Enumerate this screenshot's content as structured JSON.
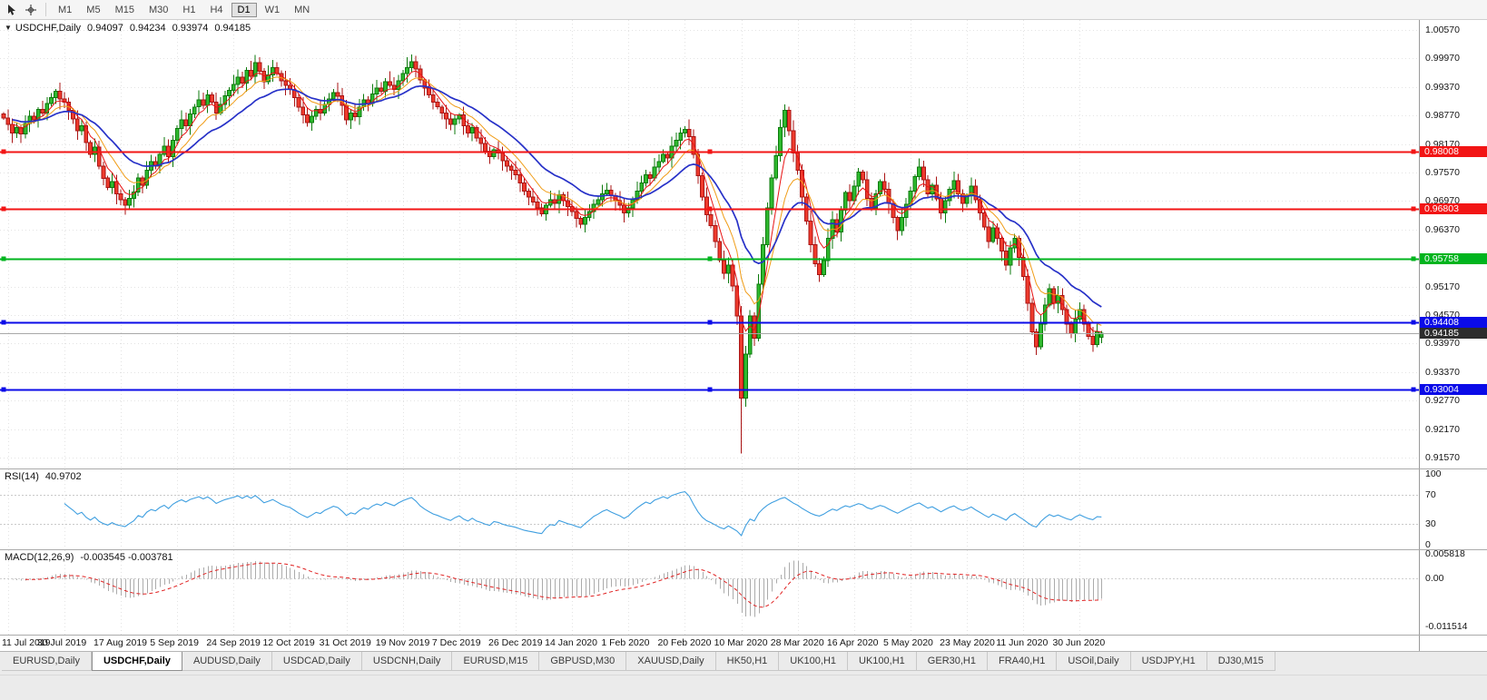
{
  "toolbar": {
    "timeframes": [
      {
        "label": "M1",
        "active": false
      },
      {
        "label": "M5",
        "active": false
      },
      {
        "label": "M15",
        "active": false
      },
      {
        "label": "M30",
        "active": false
      },
      {
        "label": "H1",
        "active": false
      },
      {
        "label": "H4",
        "active": false
      },
      {
        "label": "D1",
        "active": true
      },
      {
        "label": "W1",
        "active": false
      },
      {
        "label": "MN",
        "active": false
      }
    ]
  },
  "chart": {
    "title": "USDCHF,Daily",
    "ohlc": {
      "open": "0.94097",
      "high": "0.94234",
      "low": "0.93974",
      "close": "0.94185"
    }
  },
  "chart_data": {
    "type": "candlestick",
    "symbol": "USDCHF",
    "period": "Daily",
    "price_range": {
      "top": 1.0078,
      "bottom": 0.91339
    },
    "open_first": 0.988,
    "closes": [
      0.9872,
      0.9858,
      0.984,
      0.9852,
      0.9838,
      0.986,
      0.9875,
      0.9868,
      0.989,
      0.9882,
      0.9902,
      0.9915,
      0.9928,
      0.9912,
      0.9905,
      0.9888,
      0.987,
      0.9845,
      0.9855,
      0.982,
      0.9795,
      0.981,
      0.977,
      0.9745,
      0.9725,
      0.9738,
      0.9712,
      0.97,
      0.9688,
      0.9702,
      0.9716,
      0.9745,
      0.973,
      0.9762,
      0.978,
      0.977,
      0.9795,
      0.9812,
      0.979,
      0.9825,
      0.985,
      0.9868,
      0.9855,
      0.988,
      0.9895,
      0.991,
      0.9898,
      0.992,
      0.9905,
      0.9882,
      0.99,
      0.9918,
      0.993,
      0.9942,
      0.9958,
      0.9945,
      0.9972,
      0.996,
      0.9988,
      0.997,
      0.9948,
      0.9962,
      0.9978,
      0.9965,
      0.995,
      0.994,
      0.9932,
      0.9915,
      0.9895,
      0.9878,
      0.9862,
      0.9875,
      0.989,
      0.9882,
      0.99,
      0.9912,
      0.9925,
      0.9918,
      0.9898,
      0.9868,
      0.9882,
      0.9875,
      0.9895,
      0.991,
      0.9902,
      0.9922,
      0.9935,
      0.9928,
      0.9948,
      0.994,
      0.9932,
      0.995,
      0.9965,
      0.9978,
      0.999,
      0.9975,
      0.9952,
      0.9935,
      0.992,
      0.9905,
      0.9895,
      0.9882,
      0.987,
      0.9858,
      0.987,
      0.9878,
      0.9855,
      0.984,
      0.9852,
      0.983,
      0.9818,
      0.9802,
      0.979,
      0.9805,
      0.9798,
      0.9782,
      0.977,
      0.9762,
      0.9752,
      0.9735,
      0.9718,
      0.9705,
      0.9695,
      0.9682,
      0.967,
      0.9688,
      0.97,
      0.9692,
      0.971,
      0.9698,
      0.9685,
      0.9675,
      0.966,
      0.9648,
      0.9662,
      0.9675,
      0.969,
      0.97,
      0.9712,
      0.972,
      0.9708,
      0.9698,
      0.9688,
      0.9672,
      0.9682,
      0.97,
      0.9718,
      0.9735,
      0.9752,
      0.9745,
      0.9768,
      0.978,
      0.9795,
      0.9788,
      0.9812,
      0.9825,
      0.984,
      0.9848,
      0.9832,
      0.9795,
      0.975,
      0.9705,
      0.9668,
      0.9645,
      0.9612,
      0.9572,
      0.9545,
      0.9562,
      0.9518,
      0.9455,
      0.9282,
      0.9375,
      0.9455,
      0.9408,
      0.9522,
      0.9605,
      0.9682,
      0.9745,
      0.9792,
      0.9852,
      0.9888,
      0.9845,
      0.9798,
      0.9762,
      0.9705,
      0.9655,
      0.9605,
      0.9565,
      0.9542,
      0.9572,
      0.9618,
      0.9658,
      0.9632,
      0.9678,
      0.9715,
      0.9698,
      0.9728,
      0.9758,
      0.9742,
      0.9702,
      0.9682,
      0.9712,
      0.9738,
      0.9722,
      0.9692,
      0.9662,
      0.9635,
      0.9662,
      0.969,
      0.9718,
      0.9748,
      0.9768,
      0.9742,
      0.9712,
      0.973,
      0.9702,
      0.9672,
      0.9698,
      0.9722,
      0.974,
      0.9712,
      0.9692,
      0.9708,
      0.9728,
      0.97,
      0.9672,
      0.9642,
      0.9612,
      0.964,
      0.9618,
      0.9592,
      0.9562,
      0.9598,
      0.9618,
      0.9578,
      0.9538,
      0.9482,
      0.9422,
      0.939,
      0.9438,
      0.9478,
      0.9512,
      0.9482,
      0.9498,
      0.9468,
      0.9438,
      0.9418,
      0.9448,
      0.9468,
      0.9438,
      0.9412,
      0.9395,
      0.9422,
      0.94185
    ],
    "overrides": {
      "58": {
        "high": 1.0004
      },
      "94": {
        "high": 1.0005
      },
      "170": {
        "low": 0.9165
      },
      "238": {
        "low": 0.9373
      },
      "253": {
        "open": 0.94097,
        "high": 0.94234,
        "low": 0.93974
      }
    },
    "x_labels": [
      {
        "bar": 1,
        "text": "11 Jul 2019"
      },
      {
        "bar": 14,
        "text": "30 Jul 2019"
      },
      {
        "bar": 27,
        "text": "17 Aug 2019"
      },
      {
        "bar": 40,
        "text": "5 Sep 2019"
      },
      {
        "bar": 53,
        "text": "24 Sep 2019"
      },
      {
        "bar": 66,
        "text": "12 Oct 2019"
      },
      {
        "bar": 79,
        "text": "31 Oct 2019"
      },
      {
        "bar": 92,
        "text": "19 Nov 2019"
      },
      {
        "bar": 105,
        "text": "7 Dec 2019"
      },
      {
        "bar": 118,
        "text": "26 Dec 2019"
      },
      {
        "bar": 131,
        "text": "14 Jan 2020"
      },
      {
        "bar": 144,
        "text": "1 Feb 2020"
      },
      {
        "bar": 157,
        "text": "20 Feb 2020"
      },
      {
        "bar": 170,
        "text": "10 Mar 2020"
      },
      {
        "bar": 183,
        "text": "28 Mar 2020"
      },
      {
        "bar": 196,
        "text": "16 Apr 2020"
      },
      {
        "bar": 209,
        "text": "5 May 2020"
      },
      {
        "bar": 222,
        "text": "23 May 2020"
      },
      {
        "bar": 235,
        "text": "11 Jun 2020"
      },
      {
        "bar": 248,
        "text": "30 Jun 2020"
      }
    ],
    "y_ticks": [
      "1.00570",
      "0.99970",
      "0.99370",
      "0.98770",
      "0.98170",
      "0.97570",
      "0.96970",
      "0.96370",
      "0.95170",
      "0.94570",
      "0.93970",
      "0.93370",
      "0.92770",
      "0.92170",
      "0.91570"
    ],
    "h_lines": [
      {
        "label": "0.98008",
        "value": 0.98008,
        "color": "#f21515"
      },
      {
        "label": "0.96803",
        "value": 0.96803,
        "color": "#f21515"
      },
      {
        "label": "0.95758",
        "value": 0.95758,
        "color": "#00b41e"
      },
      {
        "label": "0.94408",
        "value": 0.94408,
        "color": "#0b0be8"
      },
      {
        "label": "0.93004",
        "value": 0.93004,
        "color": "#0b0be8"
      }
    ],
    "current_price": {
      "label": "0.94185",
      "value": 0.94185,
      "badge_color": "#2d2d2d",
      "line_color": "#a8a8a8"
    },
    "moving_averages": [
      {
        "name": "fast",
        "type": "ema",
        "period": 5,
        "color": "#e81414",
        "width": 1
      },
      {
        "name": "medium",
        "type": "ema",
        "period": 10,
        "color": "#f09c16",
        "width": 1
      },
      {
        "name": "slow",
        "type": "ema",
        "period": 21,
        "color": "#2731c8",
        "width": 1.7
      }
    ],
    "candle_colors": {
      "up_fill": "#2fba2f",
      "up_stroke": "#0c7a0c",
      "down_fill": "#ef3b2d",
      "down_stroke": "#aa1414"
    },
    "grid_color": "#e3e3e3",
    "rsi": {
      "label": "RSI(14)",
      "value": "40.9702",
      "period": 14,
      "color": "#3f9fe0",
      "ticks": [
        100,
        70,
        30,
        0
      ],
      "level_lines": [
        70,
        30
      ]
    },
    "macd": {
      "label": "MACD(12,26,9)",
      "value": "-0.003545 -0.003781",
      "fast": 12,
      "slow": 26,
      "signal": 9,
      "hist_color": "#ababab",
      "signal_color": "#e02020",
      "ticks": [
        {
          "text": "0.005818",
          "value": 0.005818
        },
        {
          "text": "0.00",
          "value": 0
        },
        {
          "text": "-0.011514",
          "value": -0.011514
        }
      ],
      "range": {
        "top": 0.0067,
        "bottom": -0.0135
      }
    }
  },
  "tabs": [
    {
      "label": "EURUSD,Daily",
      "active": false
    },
    {
      "label": "USDCHF,Daily",
      "active": true
    },
    {
      "label": "AUDUSD,Daily",
      "active": false
    },
    {
      "label": "USDCAD,Daily",
      "active": false
    },
    {
      "label": "USDCNH,Daily",
      "active": false
    },
    {
      "label": "EURUSD,M15",
      "active": false
    },
    {
      "label": "GBPUSD,M30",
      "active": false
    },
    {
      "label": "XAUUSD,Daily",
      "active": false
    },
    {
      "label": "HK50,H1",
      "active": false
    },
    {
      "label": "UK100,H1",
      "active": false
    },
    {
      "label": "UK100,H1",
      "active": false
    },
    {
      "label": "GER30,H1",
      "active": false
    },
    {
      "label": "FRA40,H1",
      "active": false
    },
    {
      "label": "USOil,Daily",
      "active": false
    },
    {
      "label": "USDJPY,H1",
      "active": false
    },
    {
      "label": "DJ30,M15",
      "active": false
    }
  ]
}
